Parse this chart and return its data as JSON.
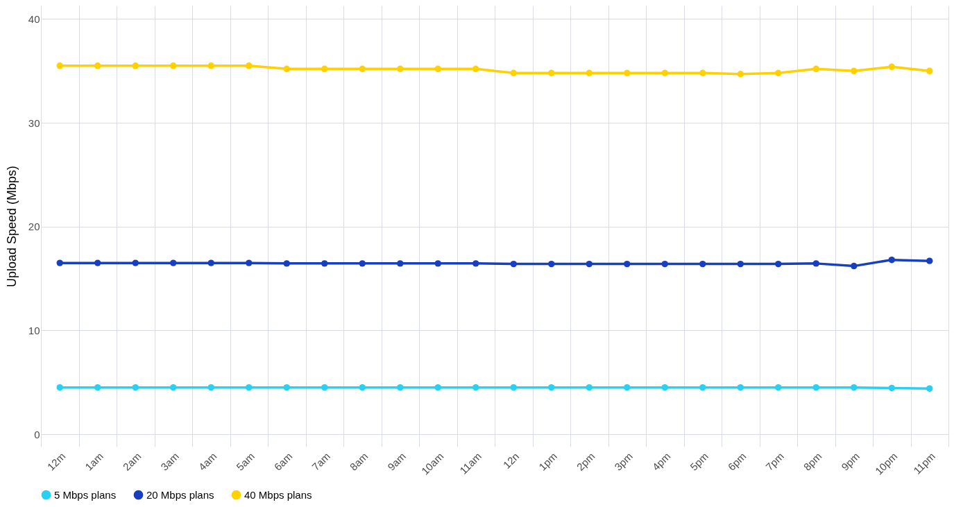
{
  "chart_data": {
    "type": "line",
    "ylabel": "Upload Speed (Mbps)",
    "categories": [
      "12m",
      "1am",
      "2am",
      "3am",
      "4am",
      "5am",
      "6am",
      "7am",
      "8am",
      "9am",
      "10am",
      "11am",
      "12n",
      "1pm",
      "2pm",
      "3pm",
      "4pm",
      "5pm",
      "6pm",
      "7pm",
      "8pm",
      "9pm",
      "10pm",
      "11pm"
    ],
    "series": [
      {
        "name": "5 Mbps plans",
        "color": "#29d0ef",
        "values": [
          4.5,
          4.5,
          4.5,
          4.5,
          4.5,
          4.5,
          4.5,
          4.5,
          4.5,
          4.5,
          4.5,
          4.5,
          4.5,
          4.5,
          4.5,
          4.5,
          4.5,
          4.5,
          4.5,
          4.5,
          4.5,
          4.5,
          4.45,
          4.4
        ]
      },
      {
        "name": "20 Mbps plans",
        "color": "#173fbf",
        "values": [
          16.5,
          16.5,
          16.5,
          16.5,
          16.5,
          16.5,
          16.45,
          16.45,
          16.45,
          16.45,
          16.45,
          16.45,
          16.4,
          16.4,
          16.4,
          16.4,
          16.4,
          16.4,
          16.4,
          16.4,
          16.45,
          16.2,
          16.8,
          16.7
        ]
      },
      {
        "name": "40 Mbps plans",
        "color": "#ffd100",
        "values": [
          35.5,
          35.5,
          35.5,
          35.5,
          35.5,
          35.5,
          35.2,
          35.2,
          35.2,
          35.2,
          35.2,
          35.2,
          34.8,
          34.8,
          34.8,
          34.8,
          34.8,
          34.8,
          34.7,
          34.8,
          35.2,
          35.0,
          35.4,
          35.0
        ]
      }
    ],
    "ylim": [
      -1.2,
      41.3
    ],
    "yticks": [
      0,
      10,
      20,
      30,
      40
    ],
    "grid": true,
    "legend": "bottom",
    "marker": "circle"
  }
}
